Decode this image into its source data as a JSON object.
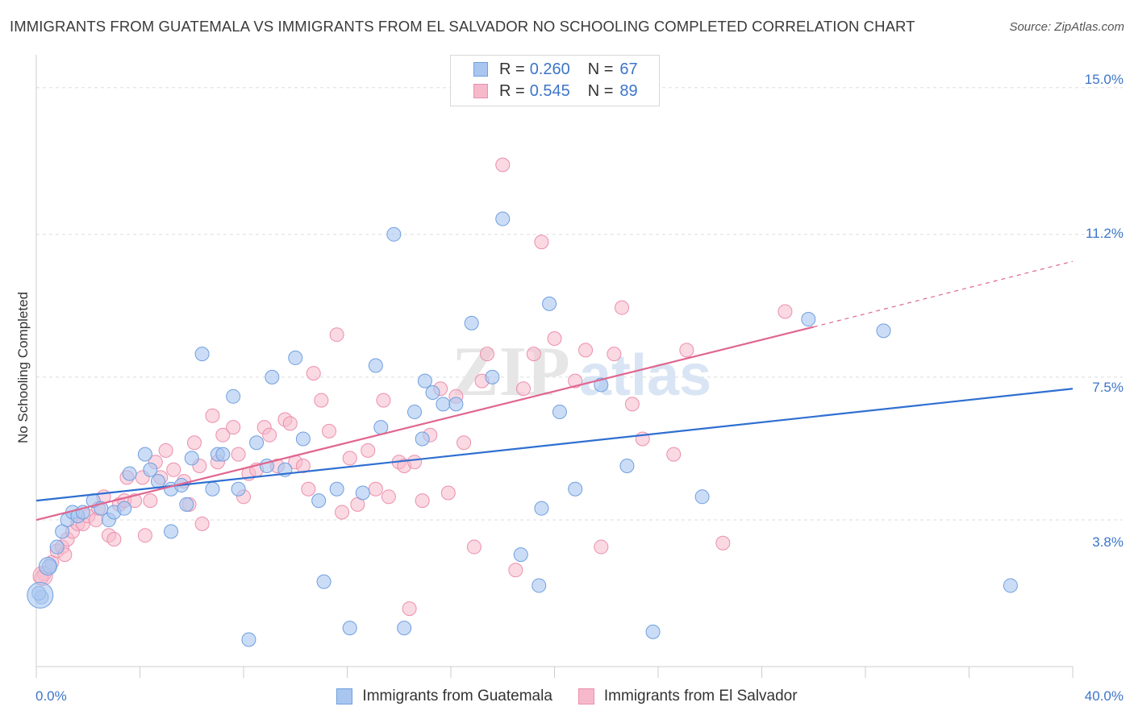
{
  "title": "IMMIGRANTS FROM GUATEMALA VS IMMIGRANTS FROM EL SALVADOR NO SCHOOLING COMPLETED CORRELATION CHART",
  "source": "Source: ZipAtlas.com",
  "watermark": {
    "zip": "ZIP",
    "atlas": "atlas"
  },
  "legend": {
    "series1": {
      "r_label": "R =",
      "r_value": "0.260",
      "n_label": "N =",
      "n_value": "67"
    },
    "series2": {
      "r_label": "R =",
      "r_value": "0.545",
      "n_label": "N =",
      "n_value": "89"
    }
  },
  "chart_data": {
    "type": "scatter",
    "title": "IMMIGRANTS FROM GUATEMALA VS IMMIGRANTS FROM EL SALVADOR NO SCHOOLING COMPLETED CORRELATION CHART",
    "xlabel": "",
    "ylabel": "No Schooling Completed",
    "xlim": [
      0,
      40
    ],
    "ylim": [
      0,
      15.6
    ],
    "x_tick_labels": [
      "0.0%",
      "40.0%"
    ],
    "y_ticks": [
      3.8,
      7.5,
      11.2,
      15.0
    ],
    "y_tick_labels": [
      "3.8%",
      "7.5%",
      "11.2%",
      "15.0%"
    ],
    "grid": true,
    "legend_position": "top-center",
    "colors": {
      "guatemala_fill": "#a9c6f0",
      "guatemala_stroke": "#6f9fe0",
      "guatemala_line": "#2f6fd1",
      "salvador_fill": "#f6b9cc",
      "salvador_stroke": "#ec8fac",
      "salvador_line": "#e0668f",
      "tick_label": "#3d75c9",
      "grid": "#dddddd"
    },
    "series": [
      {
        "name": "Immigrants from Guatemala",
        "r": 0.26,
        "n": 67,
        "trend": {
          "x": [
            0,
            40
          ],
          "y": [
            4.3,
            7.2
          ]
        },
        "points": [
          [
            0.2,
            1.8
          ],
          [
            0.5,
            2.6
          ],
          [
            0.8,
            3.1
          ],
          [
            1.0,
            3.5
          ],
          [
            1.2,
            3.8
          ],
          [
            1.4,
            4.0
          ],
          [
            1.6,
            3.9
          ],
          [
            1.8,
            4.0
          ],
          [
            2.2,
            4.3
          ],
          [
            2.5,
            4.1
          ],
          [
            2.8,
            3.8
          ],
          [
            3.0,
            4.0
          ],
          [
            3.4,
            4.1
          ],
          [
            3.6,
            5.0
          ],
          [
            4.2,
            5.5
          ],
          [
            4.4,
            5.1
          ],
          [
            4.7,
            4.8
          ],
          [
            5.2,
            4.6
          ],
          [
            5.2,
            3.5
          ],
          [
            5.6,
            4.7
          ],
          [
            5.8,
            4.2
          ],
          [
            6.0,
            5.4
          ],
          [
            6.4,
            8.1
          ],
          [
            6.8,
            4.6
          ],
          [
            7.0,
            5.5
          ],
          [
            7.2,
            5.5
          ],
          [
            7.6,
            7.0
          ],
          [
            7.8,
            4.6
          ],
          [
            8.2,
            0.7
          ],
          [
            8.5,
            5.8
          ],
          [
            8.9,
            5.2
          ],
          [
            9.1,
            7.5
          ],
          [
            9.6,
            5.1
          ],
          [
            10.0,
            8.0
          ],
          [
            10.3,
            5.9
          ],
          [
            10.9,
            4.3
          ],
          [
            11.1,
            2.2
          ],
          [
            11.6,
            4.6
          ],
          [
            12.1,
            1.0
          ],
          [
            12.6,
            4.5
          ],
          [
            13.1,
            7.8
          ],
          [
            13.3,
            6.2
          ],
          [
            13.8,
            11.2
          ],
          [
            14.2,
            1.0
          ],
          [
            14.6,
            6.6
          ],
          [
            14.9,
            5.9
          ],
          [
            15.0,
            7.4
          ],
          [
            15.3,
            7.1
          ],
          [
            15.7,
            6.8
          ],
          [
            16.2,
            6.8
          ],
          [
            16.8,
            8.9
          ],
          [
            17.6,
            7.5
          ],
          [
            18.0,
            11.6
          ],
          [
            18.7,
            2.9
          ],
          [
            19.4,
            2.1
          ],
          [
            19.5,
            4.1
          ],
          [
            19.8,
            9.4
          ],
          [
            20.2,
            6.6
          ],
          [
            20.8,
            4.6
          ],
          [
            21.8,
            7.3
          ],
          [
            22.8,
            5.2
          ],
          [
            23.8,
            0.9
          ],
          [
            25.7,
            4.4
          ],
          [
            29.8,
            9.0
          ],
          [
            32.7,
            8.7
          ],
          [
            37.6,
            2.1
          ],
          [
            0.1,
            1.9
          ]
        ]
      },
      {
        "name": "Immigrants from El Salvador",
        "r": 0.545,
        "n": 89,
        "trend": {
          "x": [
            0,
            30
          ],
          "y": [
            3.8,
            8.8
          ]
        },
        "trend_extension": {
          "x": [
            30,
            40
          ],
          "y": [
            8.8,
            10.5
          ]
        },
        "points": [
          [
            0.3,
            2.4
          ],
          [
            0.6,
            2.7
          ],
          [
            0.8,
            3.0
          ],
          [
            1.0,
            3.1
          ],
          [
            1.2,
            3.3
          ],
          [
            1.4,
            3.5
          ],
          [
            1.6,
            3.7
          ],
          [
            1.8,
            3.7
          ],
          [
            2.0,
            3.9
          ],
          [
            2.3,
            3.8
          ],
          [
            2.6,
            4.4
          ],
          [
            2.8,
            3.4
          ],
          [
            3.0,
            3.3
          ],
          [
            3.2,
            4.2
          ],
          [
            3.4,
            4.3
          ],
          [
            3.5,
            4.9
          ],
          [
            3.8,
            4.3
          ],
          [
            4.1,
            4.9
          ],
          [
            4.2,
            3.4
          ],
          [
            4.4,
            4.3
          ],
          [
            4.6,
            5.3
          ],
          [
            4.8,
            4.9
          ],
          [
            5.0,
            5.6
          ],
          [
            5.3,
            5.1
          ],
          [
            5.7,
            4.8
          ],
          [
            5.9,
            4.2
          ],
          [
            6.1,
            5.8
          ],
          [
            6.3,
            5.2
          ],
          [
            6.4,
            3.7
          ],
          [
            6.8,
            6.5
          ],
          [
            7.0,
            5.3
          ],
          [
            7.2,
            6.0
          ],
          [
            7.6,
            6.2
          ],
          [
            7.8,
            5.5
          ],
          [
            8.0,
            4.4
          ],
          [
            8.2,
            5.0
          ],
          [
            8.5,
            5.1
          ],
          [
            8.8,
            6.2
          ],
          [
            9.0,
            6.0
          ],
          [
            9.3,
            5.2
          ],
          [
            9.6,
            6.4
          ],
          [
            9.8,
            6.3
          ],
          [
            10.0,
            5.3
          ],
          [
            10.3,
            5.2
          ],
          [
            10.5,
            4.6
          ],
          [
            10.7,
            7.6
          ],
          [
            11.0,
            6.9
          ],
          [
            11.3,
            6.1
          ],
          [
            11.6,
            8.6
          ],
          [
            11.8,
            4.0
          ],
          [
            12.1,
            5.4
          ],
          [
            12.4,
            4.2
          ],
          [
            12.8,
            5.6
          ],
          [
            13.1,
            4.6
          ],
          [
            13.4,
            6.9
          ],
          [
            13.6,
            4.4
          ],
          [
            14.0,
            5.3
          ],
          [
            14.2,
            5.2
          ],
          [
            14.4,
            1.5
          ],
          [
            14.6,
            5.3
          ],
          [
            14.9,
            4.3
          ],
          [
            15.2,
            6.0
          ],
          [
            15.6,
            7.2
          ],
          [
            15.9,
            4.5
          ],
          [
            16.2,
            7.0
          ],
          [
            16.5,
            5.8
          ],
          [
            16.9,
            3.1
          ],
          [
            17.2,
            7.4
          ],
          [
            17.4,
            8.1
          ],
          [
            18.0,
            13.0
          ],
          [
            18.5,
            2.5
          ],
          [
            18.8,
            7.2
          ],
          [
            19.2,
            8.1
          ],
          [
            19.5,
            11.0
          ],
          [
            20.0,
            8.5
          ],
          [
            20.8,
            7.4
          ],
          [
            21.2,
            8.2
          ],
          [
            21.8,
            3.1
          ],
          [
            22.3,
            8.1
          ],
          [
            22.6,
            9.3
          ],
          [
            23.0,
            6.8
          ],
          [
            23.4,
            5.9
          ],
          [
            24.6,
            5.5
          ],
          [
            25.1,
            8.2
          ],
          [
            26.5,
            3.2
          ],
          [
            28.9,
            9.2
          ],
          [
            0.2,
            2.3
          ],
          [
            1.1,
            2.9
          ],
          [
            2.4,
            4.1
          ]
        ]
      }
    ]
  },
  "x_axis": {
    "left_label": "0.0%",
    "right_label": "40.0%"
  },
  "y_axis": {
    "label": "No Schooling Completed",
    "tick_labels": [
      "15.0%",
      "11.2%",
      "7.5%",
      "3.8%"
    ]
  },
  "bottom_legend": {
    "item1": "Immigrants from Guatemala",
    "item2": "Immigrants from El Salvador"
  }
}
